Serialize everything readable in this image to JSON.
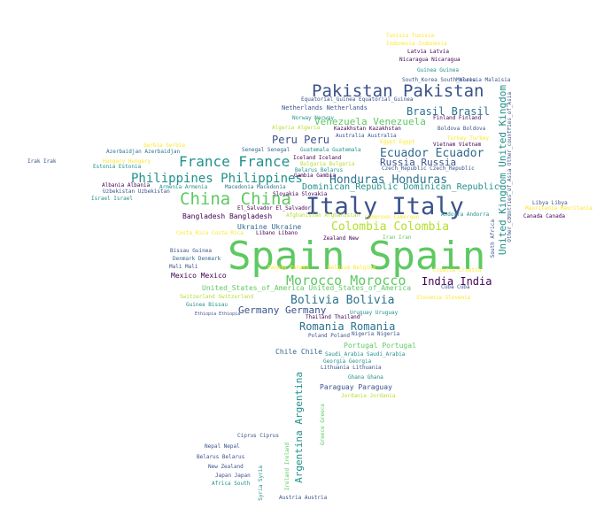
{
  "cloud": {
    "words": [
      {
        "text": "Spain Spain",
        "color": "#5ec962"
      },
      {
        "text": "Italy Italy",
        "color": "#3b528b"
      },
      {
        "text": "Pakistan Pakistan",
        "color": "#3b528b"
      },
      {
        "text": "China China",
        "color": "#5ec962"
      },
      {
        "text": "France France",
        "color": "#21918c"
      },
      {
        "text": "Philippines Philippines",
        "color": "#21918c"
      },
      {
        "text": "Morocco Morocco",
        "color": "#5ec962"
      },
      {
        "text": "Colombia Colombia",
        "color": "#b5de2b"
      },
      {
        "text": "Honduras Honduras",
        "color": "#2c728e"
      },
      {
        "text": "Ecuador Ecuador",
        "color": "#31688e"
      },
      {
        "text": "Bolivia Bolivia",
        "color": "#2c728e"
      },
      {
        "text": "Romania Romania",
        "color": "#2c728e"
      },
      {
        "text": "Germany Germany",
        "color": "#3b528b"
      },
      {
        "text": "India India",
        "color": "#440154"
      },
      {
        "text": "Brasil Brasil",
        "color": "#2c728e"
      },
      {
        "text": "Russia Russia",
        "color": "#3b528b"
      },
      {
        "text": "Peru Peru",
        "color": "#3b528b"
      },
      {
        "text": "Venezuela Venezuela",
        "color": "#5ec962"
      },
      {
        "text": "Dominican_Republic Dominican_Republic",
        "color": "#21918c"
      },
      {
        "text": "United_Kingdom United_Kingdom",
        "color": "#21918c"
      },
      {
        "text": "Argentina Argentina",
        "color": "#21918c"
      },
      {
        "text": "Bangladesh Bangladesh",
        "color": "#440154"
      },
      {
        "text": "Ukraine Ukraine",
        "color": "#31688e"
      },
      {
        "text": "United_States_of_America United_States_of_America",
        "color": "#5ec962"
      },
      {
        "text": "Portugal Portugal",
        "color": "#5ec962"
      },
      {
        "text": "Mexico Mexico",
        "color": "#440154"
      },
      {
        "text": "Paraguay Paraguay",
        "color": "#3b528b"
      },
      {
        "text": "Chile Chile",
        "color": "#31688e"
      },
      {
        "text": "Netherlands Netherlands",
        "color": "#3b528b"
      },
      {
        "text": "Tunisia Tunisia",
        "color": "#fde725"
      },
      {
        "text": "Indonesia Indonesia",
        "color": "#fde725"
      },
      {
        "text": "Latvia Latvia",
        "color": "#440154"
      },
      {
        "text": "Nicaragua Nicaragua",
        "color": "#440154"
      },
      {
        "text": "Guinea Guinea",
        "color": "#21918c"
      },
      {
        "text": "Malaisia Malaisia",
        "color": "#3b528b"
      },
      {
        "text": "South_Korea South_Korea",
        "color": "#3b528b"
      },
      {
        "text": "Equatorial_Guinea Equatorial_Guinea",
        "color": "#3b528b"
      },
      {
        "text": "Finland Finland",
        "color": "#440154"
      },
      {
        "text": "Boldova Boldova",
        "color": "#3b528b"
      },
      {
        "text": "Norway Norway",
        "color": "#21918c"
      },
      {
        "text": "Algeria Algeria",
        "color": "#b5de2b"
      },
      {
        "text": "Kazakhstan Kazakhstan",
        "color": "#440154"
      },
      {
        "text": "Australia Australia",
        "color": "#3b528b"
      },
      {
        "text": "Egypt Egypt",
        "color": "#fde725"
      },
      {
        "text": "Turkey Turkey",
        "color": "#fde725"
      },
      {
        "text": "Vietnam Vietnam",
        "color": "#440154"
      },
      {
        "text": "Serbia Serbia",
        "color": "#fde725"
      },
      {
        "text": "Senegal Senegal",
        "color": "#31688e"
      },
      {
        "text": "Guatemala Guatemala",
        "color": "#21918c"
      },
      {
        "text": "Azerbaidjan Azerbaidjan",
        "color": "#2c728e"
      },
      {
        "text": "Hungary Hungary",
        "color": "#fde725"
      },
      {
        "text": "Estonia Estonia",
        "color": "#21918c"
      },
      {
        "text": "Iceland Iceland",
        "color": "#440154"
      },
      {
        "text": "Bulgaria Bulgaria",
        "color": "#b5de2b"
      },
      {
        "text": "Belarus Belarus",
        "color": "#21918c"
      },
      {
        "text": "Czech_Republic Czech_Republic",
        "color": "#3b528b"
      },
      {
        "text": "Gambia Gambia",
        "color": "#440154"
      },
      {
        "text": "Albania Albania",
        "color": "#440154"
      },
      {
        "text": "Armenia Armenia",
        "color": "#21918c"
      },
      {
        "text": "Macedonia Macedonia",
        "color": "#2c728e"
      },
      {
        "text": "Uzbekistan Uzbekistan",
        "color": "#3b528b"
      },
      {
        "text": "Slovakia Slovakia",
        "color": "#440154"
      },
      {
        "text": "Israel Israel",
        "color": "#21918c"
      },
      {
        "text": "El_Salvador El_Salvador",
        "color": "#440154"
      },
      {
        "text": "Afghanistan Afghanistan",
        "color": "#b5de2b"
      },
      {
        "text": "Cameroon Cameroon",
        "color": "#fde725"
      },
      {
        "text": "Andorra Andorra",
        "color": "#21918c"
      },
      {
        "text": "Vietnam Vietnam",
        "color": "#440154"
      },
      {
        "text": "Libya Libya",
        "color": "#3b528b"
      },
      {
        "text": "Mauritania Mauritania",
        "color": "#fde725"
      },
      {
        "text": "Canada Canada",
        "color": "#440154"
      },
      {
        "text": "Costa_Rica Costa_Rica",
        "color": "#fde725"
      },
      {
        "text": "Libano Libano",
        "color": "#440154"
      },
      {
        "text": "Zealand New",
        "color": "#440154"
      },
      {
        "text": "Iran Iran",
        "color": "#5ec962"
      },
      {
        "text": "Bissau Guinea",
        "color": "#3b528b"
      },
      {
        "text": "Denmark Denmark",
        "color": "#31688e"
      },
      {
        "text": "Mali Mali",
        "color": "#3b528b"
      },
      {
        "text": "Panama Panama",
        "color": "#fde725"
      },
      {
        "text": "Belgium Belgium",
        "color": "#fde725"
      },
      {
        "text": "Croatia Croatia",
        "color": "#fde725"
      },
      {
        "text": "Cuba Cuba",
        "color": "#3b528b"
      },
      {
        "text": "Switzerland Switzerland",
        "color": "#b5de2b"
      },
      {
        "text": "Guinea Bissau",
        "color": "#21918c"
      },
      {
        "text": "Slovenia Slovenia",
        "color": "#fde725"
      },
      {
        "text": "Thailand Thailand",
        "color": "#440154"
      },
      {
        "text": "Uruguay Uruguay",
        "color": "#21918c"
      },
      {
        "text": "Nigeria Nigeria",
        "color": "#3b528b"
      },
      {
        "text": "Poland Poland",
        "color": "#3b528b"
      },
      {
        "text": "Saudi_Arabia Saudi_Arabia",
        "color": "#21918c"
      },
      {
        "text": "Georgia Georgia",
        "color": "#21918c"
      },
      {
        "text": "Lithuania Lithuania",
        "color": "#3b528b"
      },
      {
        "text": "Ghana Ghana",
        "color": "#21918c"
      },
      {
        "text": "Jordania Jordania",
        "color": "#b5de2b"
      },
      {
        "text": "Ireland Ireland",
        "color": "#5ec962"
      },
      {
        "text": "Greece Greece",
        "color": "#5ec962"
      },
      {
        "text": "Syria Syria",
        "color": "#21918c"
      },
      {
        "text": "Ciprus Ciprus",
        "color": "#3b528b"
      },
      {
        "text": "Nepal Nepal",
        "color": "#3b528b"
      },
      {
        "text": "Belarus Belarus",
        "color": "#3b528b"
      },
      {
        "text": "New Zealand",
        "color": "#3b528b"
      },
      {
        "text": "Japan Japan",
        "color": "#3b528b"
      },
      {
        "text": "Africa South",
        "color": "#21918c"
      },
      {
        "text": "Austria Austria",
        "color": "#3b528b"
      },
      {
        "text": "Irak Irak",
        "color": "#3b528b"
      },
      {
        "text": "South Africa",
        "color": "#3b528b"
      },
      {
        "text": "Other_countries_of_Asia Other_countries_of_Asia",
        "color": "#3b528b"
      },
      {
        "text": "Ethiopia Ethiopia",
        "color": "#3b528b"
      }
    ]
  }
}
